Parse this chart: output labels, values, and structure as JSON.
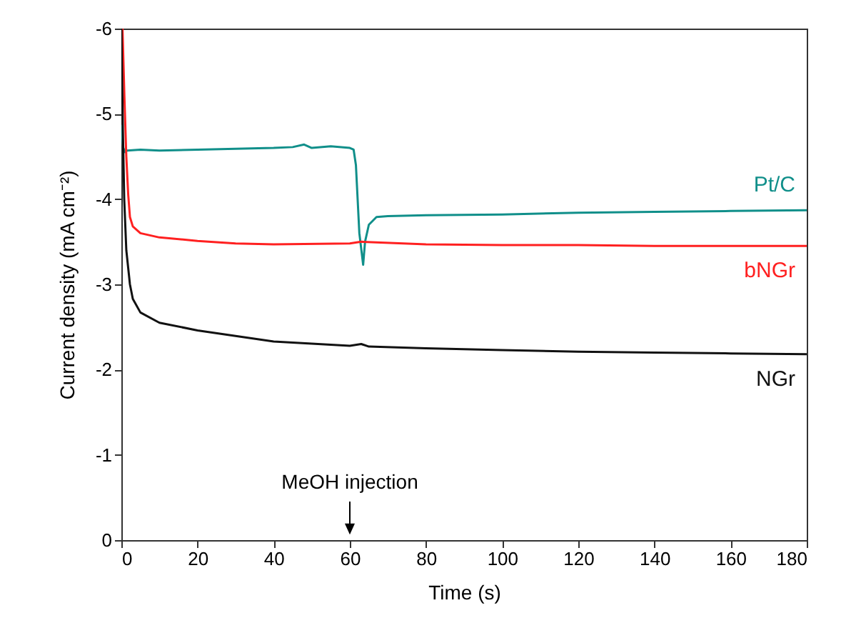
{
  "chart_data": {
    "type": "line",
    "xlabel": "Time (s)",
    "ylabel": "Current density (mA cm⁻²)",
    "xlim": [
      0,
      180
    ],
    "ylim": [
      0,
      -6
    ],
    "xticks": [
      0,
      20,
      40,
      60,
      80,
      100,
      120,
      140,
      160,
      180
    ],
    "yticks": [
      0,
      -1,
      -2,
      -3,
      -4,
      -5,
      -6
    ],
    "grid": false,
    "marker": "none",
    "line_style": "solid",
    "series": [
      {
        "name": "Pt/C",
        "color": "#108f8a",
        "x": [
          0,
          0.5,
          1,
          1.5,
          5,
          10,
          20,
          30,
          40,
          45,
          48,
          50,
          55,
          60,
          61,
          61.6,
          62.5,
          63.5,
          64,
          65,
          67,
          70,
          80,
          100,
          120,
          140,
          160,
          180
        ],
        "values": [
          -4.87,
          -4.6,
          -4.55,
          -4.57,
          -4.58,
          -4.57,
          -4.58,
          -4.59,
          -4.6,
          -4.61,
          -4.64,
          -4.6,
          -4.62,
          -4.6,
          -4.58,
          -4.4,
          -3.6,
          -3.23,
          -3.5,
          -3.7,
          -3.79,
          -3.8,
          -3.81,
          -3.82,
          -3.84,
          -3.85,
          -3.86,
          -3.87
        ]
      },
      {
        "name": "bNGr",
        "color": "#ff2020",
        "x": [
          0.3,
          0.8,
          1.3,
          1.8,
          2.25,
          3,
          5,
          10,
          20,
          30,
          40,
          60,
          63,
          80,
          100,
          120,
          140,
          160,
          180
        ],
        "values": [
          -6,
          -5.2,
          -4.5,
          -4.05,
          -3.79,
          -3.68,
          -3.6,
          -3.55,
          -3.51,
          -3.48,
          -3.47,
          -3.48,
          -3.5,
          -3.47,
          -3.46,
          -3.46,
          -3.45,
          -3.45,
          -3.45
        ]
      },
      {
        "name": "NGr",
        "color": "#111111",
        "x": [
          0,
          0.4,
          0.75,
          1.3,
          2.25,
          3,
          5,
          10,
          20,
          40,
          60,
          63,
          65,
          80,
          100,
          120,
          140,
          160,
          180
        ],
        "values": [
          -6,
          -4.8,
          -4.0,
          -3.4,
          -3.0,
          -2.83,
          -2.67,
          -2.55,
          -2.46,
          -2.33,
          -2.28,
          -2.3,
          -2.27,
          -2.25,
          -2.23,
          -2.21,
          -2.2,
          -2.19,
          -2.18
        ]
      }
    ],
    "annotations": [
      "MeOH injection"
    ]
  }
}
